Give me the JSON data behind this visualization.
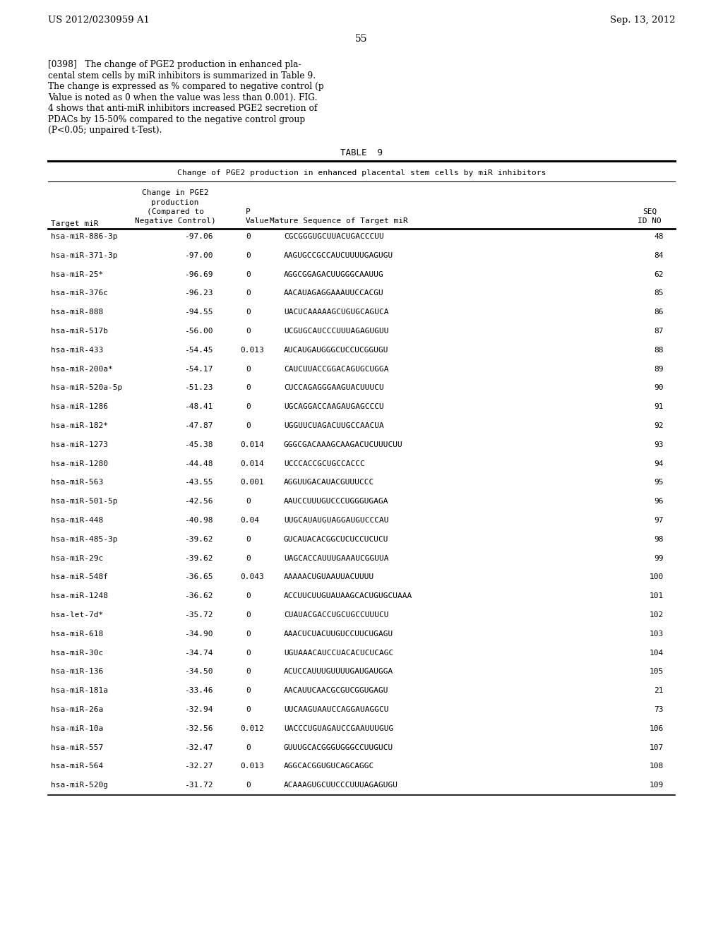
{
  "header_left": "US 2012/0230959 A1",
  "header_right": "Sep. 13, 2012",
  "page_number": "55",
  "paragraph_tag": "[0398]",
  "paragraph_lines": [
    "[0398]   The change of PGE2 production in enhanced pla-",
    "cental stem cells by miR inhibitors is summarized in Table 9.",
    "The change is expressed as % compared to negative control (p",
    "Value is noted as 0 when the value was less than 0.001). FIG.",
    "4 shows that anti-miR inhibitors increased PGE2 secretion of",
    "PDACs by 15-50% compared to the negative control group",
    "(P<0.05; unpaired t-Test)."
  ],
  "table_title": "TABLE  9",
  "table_subtitle": "Change of PGE2 production in enhanced placental stem cells by miR inhibitors",
  "rows": [
    [
      "hsa-miR-886-3p",
      "-97.06",
      "0",
      "CGCGGGUGCUUACUGACCCUU",
      "48"
    ],
    [
      "hsa-miR-371-3p",
      "-97.00",
      "0",
      "AAGUGCCGCCAUCUUUUGAGUGU",
      "84"
    ],
    [
      "hsa-miR-25*",
      "-96.69",
      "0",
      "AGGCGGAGACUUGGGCAAUUG",
      "62"
    ],
    [
      "hsa-miR-376c",
      "-96.23",
      "0",
      "AACAUAGAGGAAAUUCCACGU",
      "85"
    ],
    [
      "hsa-miR-888",
      "-94.55",
      "0",
      "UACUCAAAAAGCUGUGCAGUCA",
      "86"
    ],
    [
      "hsa-miR-517b",
      "-56.00",
      "0",
      "UCGUGCAUCCCUUUAGAGUGUU",
      "87"
    ],
    [
      "hsa-miR-433",
      "-54.45",
      "0.013",
      "AUCAUGAUGGGCUCCUCGGUGU",
      "88"
    ],
    [
      "hsa-miR-200a*",
      "-54.17",
      "0",
      "CAUCUUACCGGACAGUGCUGGA",
      "89"
    ],
    [
      "hsa-miR-520a-5p",
      "-51.23",
      "0",
      "CUCCAGAGGGAAGUACUUUCU",
      "90"
    ],
    [
      "hsa-miR-1286",
      "-48.41",
      "0",
      "UGCAGGACCAAGAUGAGCCCU",
      "91"
    ],
    [
      "hsa-miR-182*",
      "-47.87",
      "0",
      "UGGUUCUAGACUUGCCAACUA",
      "92"
    ],
    [
      "hsa-miR-1273",
      "-45.38",
      "0.014",
      "GGGCGACAAAGCAAGACUCUUUCUU",
      "93"
    ],
    [
      "hsa-miR-1280",
      "-44.48",
      "0.014",
      "UCCCACCGCUGCCACCC",
      "94"
    ],
    [
      "hsa-miR-563",
      "-43.55",
      "0.001",
      "AGGUUGACAUACGUUUCCC",
      "95"
    ],
    [
      "hsa-miR-501-5p",
      "-42.56",
      "0",
      "AAUCCUUUGUCCCUGGGUGAGA",
      "96"
    ],
    [
      "hsa-miR-448",
      "-40.98",
      "0.04",
      "UUGCAUAUGUAGGAUGUCCCAU",
      "97"
    ],
    [
      "hsa-miR-485-3p",
      "-39.62",
      "0",
      "GUCAUACACGGCUCUCCUCUCU",
      "98"
    ],
    [
      "hsa-miR-29c",
      "-39.62",
      "0",
      "UAGCACCAUUUGAAAUCGGUUA",
      "99"
    ],
    [
      "hsa-miR-548f",
      "-36.65",
      "0.043",
      "AAAAACUGUAAUUACUUUU",
      "100"
    ],
    [
      "hsa-miR-1248",
      "-36.62",
      "0",
      "ACCUUCUUGUAUAAGCACUGUGCUAAA",
      "101"
    ],
    [
      "hsa-let-7d*",
      "-35.72",
      "0",
      "CUAUACGACCUGCUGCCUUUCU",
      "102"
    ],
    [
      "hsa-miR-618",
      "-34.90",
      "0",
      "AAACUCUACUUGUCCUUCUGAGU",
      "103"
    ],
    [
      "hsa-miR-30c",
      "-34.74",
      "0",
      "UGUAAACAUCCUACACUCUCAGC",
      "104"
    ],
    [
      "hsa-miR-136",
      "-34.50",
      "0",
      "ACUCCAUUUGUUUUGAUGAUGGA",
      "105"
    ],
    [
      "hsa-miR-181a",
      "-33.46",
      "0",
      "AACAUUCAACGCGUCGGUGAGU",
      "21"
    ],
    [
      "hsa-miR-26a",
      "-32.94",
      "0",
      "UUCAAGUAAUCCAGGAUAGGCU",
      "73"
    ],
    [
      "hsa-miR-10a",
      "-32.56",
      "0.012",
      "UACCCUGUAGAUCCGAAUUUGUG",
      "106"
    ],
    [
      "hsa-miR-557",
      "-32.47",
      "0",
      "GUUUGCACGGGUGGGCCUUGUCU",
      "107"
    ],
    [
      "hsa-miR-564",
      "-32.27",
      "0.013",
      "AGGCACGGUGUCAGCAGGC",
      "108"
    ],
    [
      "hsa-miR-520g",
      "-31.72",
      "0",
      "ACAAAGUGCUUCCCUUUAGAGUGU",
      "109"
    ]
  ],
  "bg_color": "#ffffff",
  "text_color": "#000000"
}
